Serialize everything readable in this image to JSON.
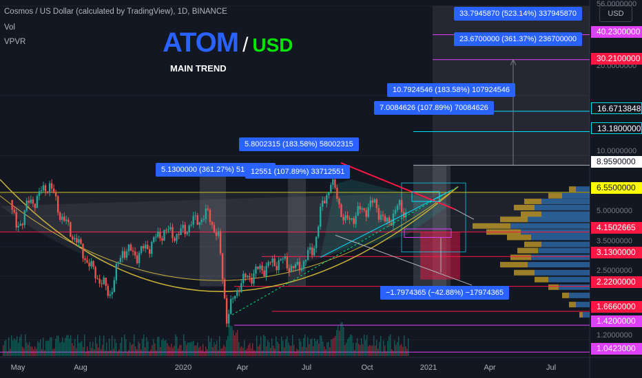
{
  "header": {
    "title": "Cosmos / US Dollar (calculated by TradingView), 1D, BINANCE",
    "vol_label": "Vol",
    "vpvr_label": "VPVR"
  },
  "brand": {
    "base": "ATOM",
    "slash": "/",
    "quote": "USD",
    "subtitle": "MAIN TREND"
  },
  "currency_button": "USD",
  "measurements": [
    "33.7945870 (523.14%) 337945870",
    "23.6700000 (361.37%) 236700000",
    "10.7924546 (183.58%) 107924546",
    "7.0084626 (107.89%) 70084626",
    "5.8002315 (183.58%) 58002315",
    "5.1300000 (361.27%) 51300000",
    "12551 (107.89%) 33712551",
    "−1.7974365 (−42.88%) −17974365"
  ],
  "price_tags": [
    {
      "label": "40.2300000",
      "color": "#e040fb"
    },
    {
      "label": "30.2100000",
      "color": "#ff1744"
    },
    {
      "label": "16.6713848",
      "color": "#131722"
    },
    {
      "label": "13.1800000",
      "color": "#131722"
    },
    {
      "label": "8.9590000",
      "color": "#ffffff"
    },
    {
      "label": "6.5500000",
      "color": "#ffff00"
    },
    {
      "label": "4.1502665",
      "color": "#ff1744"
    },
    {
      "label": "3.1300000",
      "color": "#ff1744"
    },
    {
      "label": "2.2200000",
      "color": "#ff1744"
    },
    {
      "label": "1.6660000",
      "color": "#ff1744"
    },
    {
      "label": "1.4200000",
      "color": "#e040fb"
    },
    {
      "label": "1.0423000",
      "color": "#e040fb"
    }
  ],
  "chart_data": {
    "type": "candlestick",
    "symbol": "ATOM/USD",
    "exchange": "BINANCE",
    "interval": "1D",
    "scale": "log",
    "x_ticks": [
      "May",
      "Aug",
      "2020",
      "Apr",
      "Jul",
      "Oct",
      "2021",
      "Apr",
      "Jul"
    ],
    "y_ticks": [
      56.0,
      20.0,
      10.0,
      5.0,
      3.5,
      2.5,
      1.2
    ],
    "y_tick_labels": [
      "56.0000000",
      "20.0000000",
      "10.0000000",
      "5.0000000",
      "3.5000000",
      "2.5000000",
      "1.2000000"
    ],
    "ylim": [
      0.98,
      60
    ],
    "price_path": [
      [
        "2019-04-25",
        6.0
      ],
      [
        "2019-05-05",
        4.2
      ],
      [
        "2019-05-20",
        5.6
      ],
      [
        "2019-06-05",
        6.2
      ],
      [
        "2019-06-22",
        7.3
      ],
      [
        "2019-07-10",
        5.0
      ],
      [
        "2019-08-01",
        3.8
      ],
      [
        "2019-08-25",
        2.7
      ],
      [
        "2019-09-10",
        2.3
      ],
      [
        "2019-09-20",
        2.0
      ],
      [
        "2019-10-10",
        3.4
      ],
      [
        "2019-11-01",
        3.2
      ],
      [
        "2019-11-20",
        3.6
      ],
      [
        "2019-12-10",
        4.2
      ],
      [
        "2020-01-01",
        4.0
      ],
      [
        "2020-01-20",
        4.6
      ],
      [
        "2020-02-15",
        5.1
      ],
      [
        "2020-03-01",
        3.8
      ],
      [
        "2020-03-13",
        1.55
      ],
      [
        "2020-04-01",
        2.3
      ],
      [
        "2020-05-01",
        2.7
      ],
      [
        "2020-06-01",
        3.0
      ],
      [
        "2020-06-25",
        2.7
      ],
      [
        "2020-07-20",
        3.4
      ],
      [
        "2020-08-01",
        5.4
      ],
      [
        "2020-08-15",
        7.4
      ],
      [
        "2020-08-25",
        6.2
      ],
      [
        "2020-09-05",
        4.6
      ],
      [
        "2020-09-25",
        5.2
      ],
      [
        "2020-10-20",
        5.8
      ],
      [
        "2020-11-05",
        4.5
      ],
      [
        "2020-11-25",
        5.6
      ],
      [
        "2020-12-05",
        5.2
      ]
    ],
    "horizontal_levels": [
      40.23,
      30.21,
      16.6713848,
      13.18,
      8.959,
      6.55,
      4.1502665,
      3.13,
      2.22,
      1.666,
      1.42,
      1.0423
    ],
    "drawn_levels": [
      {
        "label": "6.5500000",
        "value": 6.55
      },
      {
        "label": "4.1502665",
        "value": 4.1502665
      },
      {
        "label": "3.1300000",
        "value": 3.13
      },
      {
        "label": "2.2200000",
        "value": 2.22
      },
      {
        "label": "1.6660000",
        "value": 1.666
      },
      {
        "label": "1.4200000",
        "value": 1.42
      }
    ],
    "projection_target": 40.23,
    "notes_ranges": [
      "(523.14%)",
      "(361.37%)",
      "(183.58%)",
      "(107.89%)",
      "(-42.88%)"
    ]
  },
  "colors": {
    "background": "#131722",
    "up": "#26a69a",
    "down": "#ef5350",
    "accent": "#2962ff",
    "quote": "#00e600"
  }
}
